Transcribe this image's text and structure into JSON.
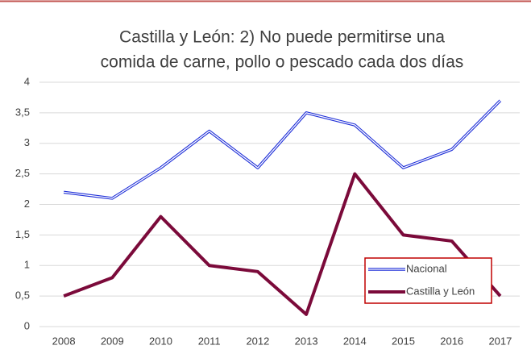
{
  "chart_data": {
    "type": "line",
    "title": [
      "Castilla y León: 2) No puede permitirse una",
      "comida de carne, pollo o pescado cada dos días"
    ],
    "categories": [
      "2008",
      "2009",
      "2010",
      "2011",
      "2012",
      "2013",
      "2014",
      "2015",
      "2016",
      "2017"
    ],
    "series": [
      {
        "name": "Nacional",
        "color": "#1f2fd8",
        "values": [
          2.2,
          2.1,
          2.6,
          3.2,
          2.6,
          3.5,
          3.3,
          2.6,
          2.9,
          3.7
        ]
      },
      {
        "name": "Castilla y León",
        "color": "#7b0a3a",
        "values": [
          0.5,
          0.8,
          1.8,
          1.0,
          0.9,
          0.2,
          2.5,
          1.5,
          1.4,
          0.5
        ]
      }
    ],
    "ylim": [
      0,
      4
    ],
    "yticks": [
      0,
      {
        "value": 0.5,
        "label": "0,5"
      },
      1,
      {
        "value": 1.5,
        "label": "1,5"
      },
      2,
      {
        "value": 2.5,
        "label": "2,5"
      },
      3,
      {
        "value": 3.5,
        "label": "3,5"
      },
      4
    ],
    "grid": true,
    "legend": "lower right"
  }
}
